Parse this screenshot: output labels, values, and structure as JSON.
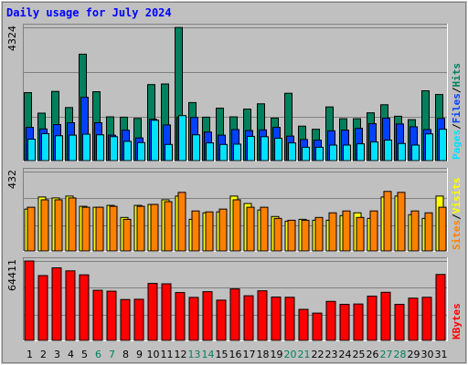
{
  "title": "Daily usage for July 2024",
  "colors": {
    "background": "#c0c0c0",
    "title": "#0000ff",
    "hits": "#00805c",
    "files": "#0040ff",
    "pages": "#00e0ff",
    "visits": "#ffff00",
    "sites": "#ff8000",
    "kbytes": "#ff0000",
    "weekday_label": "#000000",
    "weekend_label": "#00805c"
  },
  "chart_data": [
    {
      "type": "bar",
      "panel": "hits_files_pages",
      "categories": [
        "1",
        "2",
        "3",
        "4",
        "5",
        "6",
        "7",
        "8",
        "9",
        "10",
        "11",
        "12",
        "13",
        "14",
        "15",
        "16",
        "17",
        "18",
        "19",
        "20",
        "21",
        "22",
        "23",
        "24",
        "25",
        "26",
        "27",
        "28",
        "29",
        "30",
        "31"
      ],
      "weekend_days": [
        "6",
        "7",
        "13",
        "14",
        "20",
        "21",
        "27",
        "28"
      ],
      "ymax_label": "4324",
      "ylim": [
        0,
        4324
      ],
      "legend": [
        {
          "label": "Pages",
          "color": "#00e0ff"
        },
        {
          "label": "/",
          "color": "#000000"
        },
        {
          "label": "Files",
          "color": "#0040ff"
        },
        {
          "label": "/",
          "color": "#000000"
        },
        {
          "label": "Hits",
          "color": "#00805c"
        }
      ],
      "series": [
        {
          "name": "Hits",
          "values": [
            2220,
            1560,
            2260,
            1740,
            3460,
            2250,
            1440,
            1430,
            1390,
            2480,
            2500,
            4320,
            1900,
            1430,
            1720,
            1440,
            1690,
            1860,
            1400,
            2200,
            1140,
            1040,
            1760,
            1380,
            1380,
            1570,
            1830,
            1460,
            1350,
            2280,
            2160
          ]
        },
        {
          "name": "Files",
          "values": [
            1100,
            1050,
            1190,
            1250,
            2070,
            1250,
            850,
            1010,
            760,
            1360,
            1180,
            1430,
            1420,
            950,
            850,
            1030,
            1000,
            1020,
            1100,
            820,
            710,
            690,
            990,
            1010,
            1070,
            1220,
            1400,
            1210,
            1120,
            1030,
            1390
          ]
        },
        {
          "name": "Pages",
          "values": [
            720,
            900,
            830,
            850,
            880,
            860,
            800,
            650,
            610,
            1330,
            550,
            1480,
            860,
            600,
            550,
            560,
            810,
            800,
            750,
            600,
            460,
            460,
            530,
            530,
            570,
            630,
            690,
            580,
            530,
            890,
            1040
          ]
        }
      ]
    },
    {
      "type": "bar",
      "panel": "visits_sites",
      "categories": [
        "1",
        "2",
        "3",
        "4",
        "5",
        "6",
        "7",
        "8",
        "9",
        "10",
        "11",
        "12",
        "13",
        "14",
        "15",
        "16",
        "17",
        "18",
        "19",
        "20",
        "21",
        "22",
        "23",
        "24",
        "25",
        "26",
        "27",
        "28",
        "29",
        "30",
        "31"
      ],
      "ymax_label": "432",
      "ylim": [
        0,
        432
      ],
      "legend": [
        {
          "label": "Sites",
          "color": "#ff8000"
        },
        {
          "label": "/",
          "color": "#000000"
        },
        {
          "label": "Visits",
          "color": "#ffff00"
        }
      ],
      "series": [
        {
          "name": "Visits",
          "values": [
            230,
            295,
            290,
            300,
            245,
            240,
            250,
            185,
            250,
            255,
            280,
            300,
            175,
            210,
            215,
            300,
            260,
            225,
            190,
            165,
            175,
            170,
            170,
            195,
            210,
            180,
            295,
            300,
            200,
            180,
            300
          ]
        },
        {
          "name": "Sites",
          "values": [
            240,
            280,
            280,
            290,
            240,
            240,
            245,
            175,
            245,
            255,
            270,
            320,
            220,
            215,
            230,
            280,
            240,
            240,
            180,
            170,
            170,
            185,
            210,
            220,
            185,
            220,
            325,
            320,
            220,
            210,
            240
          ]
        }
      ]
    },
    {
      "type": "bar",
      "panel": "kbytes",
      "categories": [
        "1",
        "2",
        "3",
        "4",
        "5",
        "6",
        "7",
        "8",
        "9",
        "10",
        "11",
        "12",
        "13",
        "14",
        "15",
        "16",
        "17",
        "18",
        "19",
        "20",
        "21",
        "22",
        "23",
        "24",
        "25",
        "26",
        "27",
        "28",
        "29",
        "30",
        "31"
      ],
      "ymax_label": "64411",
      "ylim": [
        0,
        64411
      ],
      "legend": [
        {
          "label": "KBytes",
          "color": "#ff0000"
        }
      ],
      "series": [
        {
          "name": "KBytes",
          "values": [
            64400,
            52700,
            58900,
            56500,
            53300,
            40900,
            40200,
            33500,
            33700,
            46400,
            46100,
            39100,
            35200,
            39800,
            33000,
            42000,
            36500,
            40500,
            35500,
            35300,
            25600,
            22600,
            32000,
            29600,
            29900,
            36200,
            39300,
            29600,
            34600,
            35300,
            53600
          ]
        }
      ]
    }
  ]
}
